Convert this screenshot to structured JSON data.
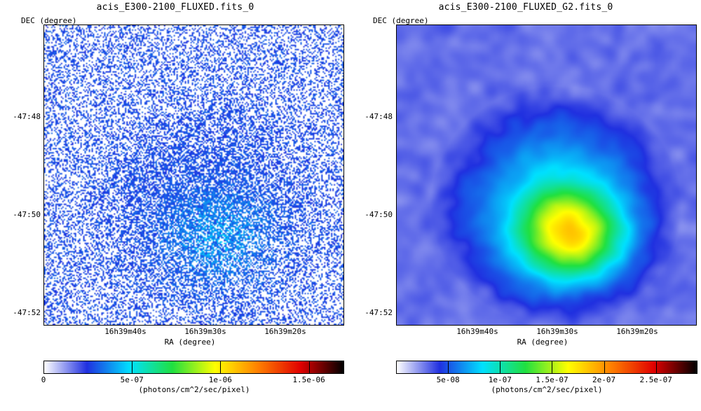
{
  "panels": [
    {
      "title": "acis_E300-2100_FLUXED.fits_0",
      "ylabel": "DEC (degree)",
      "xlabel": "RA (degree)",
      "yticks": [
        "-47:48",
        "-47:50",
        "-47:52"
      ],
      "xticks": [
        "16h39m40s",
        "16h39m30s",
        "16h39m20s"
      ],
      "colorbar_ticks": [
        "0",
        "5e-07",
        "1e-06",
        "1.5e-06"
      ],
      "colorbar_unit": "(photons/cm^2/sec/pixel)",
      "colorbar_range": [
        0,
        1.7e-06
      ],
      "style": "sparse-pixel"
    },
    {
      "title": "acis_E300-2100_FLUXED_G2.fits_0",
      "ylabel": "DEC (degree)",
      "xlabel": "RA (degree)",
      "yticks": [
        "-47:48",
        "-47:50",
        "-47:52"
      ],
      "xticks": [
        "16h39m40s",
        "16h39m30s",
        "16h39m20s"
      ],
      "colorbar_ticks": [
        "5e-08",
        "1e-07",
        "1.5e-07",
        "2e-07",
        "2.5e-07"
      ],
      "colorbar_unit": "(photons/cm^2/sec/pixel)",
      "colorbar_range": [
        0,
        2.9e-07
      ],
      "style": "smoothed"
    }
  ],
  "chart_data": [
    {
      "type": "heatmap",
      "title": "acis_E300-2100_FLUXED.fits_0",
      "xlabel": "RA (degree)",
      "ylabel": "DEC (degree)",
      "x_tick_labels": [
        "16h39m40s",
        "16h39m30s",
        "16h39m20s"
      ],
      "y_tick_labels": [
        "-47:48",
        "-47:50",
        "-47:52"
      ],
      "colorbar": {
        "label": "(photons/cm^2/sec/pixel)",
        "ticks": [
          0,
          5e-07,
          1e-06,
          1.5e-06
        ],
        "range": [
          0,
          1.7e-06
        ]
      },
      "colormap": [
        "#ffffff",
        "#2030e0",
        "#00e0ff",
        "#20e040",
        "#ffff00",
        "#ff8000",
        "#e00000",
        "#000000"
      ]
    },
    {
      "type": "heatmap",
      "title": "acis_E300-2100_FLUXED_G2.fits_0",
      "xlabel": "RA (degree)",
      "ylabel": "DEC (degree)",
      "x_tick_labels": [
        "16h39m40s",
        "16h39m30s",
        "16h39m20s"
      ],
      "y_tick_labels": [
        "-47:48",
        "-47:50",
        "-47:52"
      ],
      "colorbar": {
        "label": "(photons/cm^2/sec/pixel)",
        "ticks": [
          5e-08,
          1e-07,
          1.5e-07,
          2e-07,
          2.5e-07
        ],
        "range": [
          0,
          2.9e-07
        ]
      },
      "colormap": [
        "#ffffff",
        "#2030e0",
        "#00e0ff",
        "#20e040",
        "#ffff00",
        "#ff8000",
        "#e00000",
        "#000000"
      ]
    }
  ]
}
